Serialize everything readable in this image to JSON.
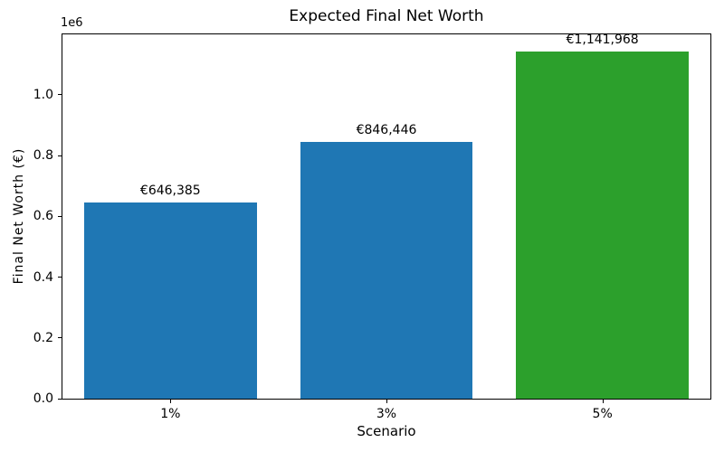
{
  "chart_data": {
    "type": "bar",
    "title": "Expected Final Net Worth",
    "xlabel": "Scenario",
    "ylabel": "Final Net Worth (€)",
    "offset_text": "1e6",
    "categories": [
      "1%",
      "3%",
      "5%"
    ],
    "values": [
      646385,
      846446,
      1141968
    ],
    "value_labels": [
      "€646,385",
      "€846,446",
      "€1,141,968"
    ],
    "colors": [
      "#1f77b4",
      "#1f77b4",
      "#2ca02c"
    ],
    "bar_width": 0.8,
    "ylim": [
      0,
      1199066
    ],
    "yticks": [
      {
        "value": 0,
        "label": "0.0"
      },
      {
        "value": 200000,
        "label": "0.2"
      },
      {
        "value": 400000,
        "label": "0.4"
      },
      {
        "value": 600000,
        "label": "0.6"
      },
      {
        "value": 800000,
        "label": "0.8"
      },
      {
        "value": 1000000,
        "label": "1.0"
      }
    ],
    "grid": false,
    "legend": "none",
    "spine_color": "#000000",
    "background_color": "#ffffff"
  }
}
